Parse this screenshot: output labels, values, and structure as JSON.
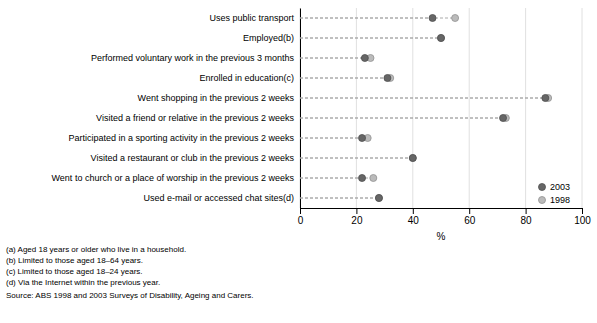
{
  "chart_data": {
    "type": "dot",
    "orientation": "horizontal",
    "categories": [
      "Uses public transport",
      "Employed(b)",
      "Performed voluntary work in the previous 3 months",
      "Enrolled in education(c)",
      "Went shopping in the previous 2 weeks",
      "Visited a friend or relative in the previous 2 weeks",
      "Participated in a sporting activity in the previous 2 weeks",
      "Visited a restaurant or club in the previous 2 weeks",
      "Went to church or a place of worship in the previous 2 weeks",
      "Used e-mail or accessed chat sites(d)"
    ],
    "series": [
      {
        "name": "2003",
        "color": "#666666",
        "values": [
          47,
          50,
          23,
          31,
          87,
          72,
          22,
          40,
          22,
          28
        ]
      },
      {
        "name": "1998",
        "color": "#bbbbbb",
        "values": [
          55,
          50,
          25,
          32,
          88,
          73,
          24,
          40,
          26,
          28
        ]
      }
    ],
    "xlabel": "%",
    "xlim": [
      0,
      100
    ],
    "xticks": [
      0,
      20,
      40,
      60,
      80,
      100
    ],
    "grid": true,
    "legend": "lower right",
    "annotations": [
      "(a) Aged 18 years or older who live in a household.",
      "(b) Limited to those aged 18–64 years.",
      "(c) Limited to those aged 18–24 years.",
      "(d) Via the Internet within the previous year.",
      "Source: ABS 1998 and 2003 Surveys of Disability, Ageing and Carers."
    ]
  }
}
